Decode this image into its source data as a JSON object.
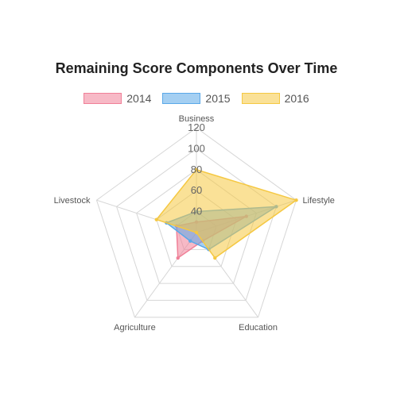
{
  "chart_data": {
    "type": "radar",
    "title": "Remaining Score Components Over Time",
    "axes": [
      "Business",
      "Lifestyle",
      "Education",
      "Agriculture",
      "Livestock"
    ],
    "r_ticks": [
      20,
      40,
      60,
      80,
      100,
      120
    ],
    "r_tick_labels": [
      "40",
      "60",
      "80",
      "100",
      "120"
    ],
    "r_range": [
      20,
      120
    ],
    "grid": true,
    "legend_position": "top",
    "series": [
      {
        "name": "2014",
        "values": [
          30,
          70,
          30,
          50,
          40
        ],
        "color": "#f08098",
        "fill": "rgba(240,128,152,0.55)"
      },
      {
        "name": "2015",
        "values": [
          40,
          100,
          40,
          30,
          50
        ],
        "color": "#5aa8e8",
        "fill": "rgba(90,168,232,0.55)"
      },
      {
        "name": "2016",
        "values": [
          80,
          120,
          50,
          20,
          60
        ],
        "color": "#f5c842",
        "fill": "rgba(245,200,66,0.55)"
      }
    ]
  }
}
